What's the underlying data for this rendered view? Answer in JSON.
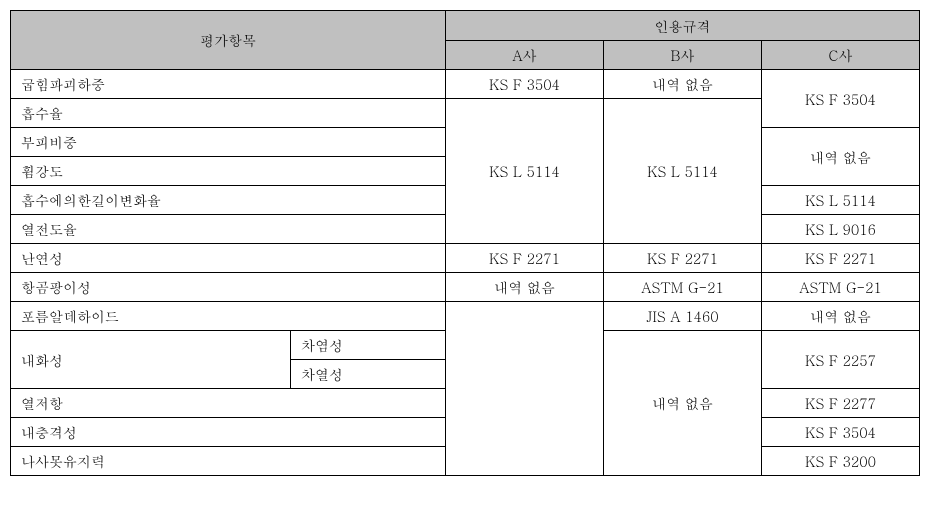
{
  "header": {
    "evaluation_item": "평가항목",
    "citation_standard": "인용규격",
    "company_a": "A사",
    "company_b": "B사",
    "company_c": "C사"
  },
  "rows": {
    "r1": {
      "label": "굽힘파괴하중",
      "a": "KS F 3504",
      "b": "내역 없음",
      "c": "KS F 3504"
    },
    "r2": {
      "label": "흡수율",
      "a": "KS L 5114",
      "b": "KS L 5114",
      "c": ""
    },
    "r3": {
      "label": "부피비중",
      "a": "",
      "b": "",
      "c": "내역 없음"
    },
    "r4": {
      "label": "휨강도",
      "a": "",
      "b": "",
      "c": ""
    },
    "r5": {
      "label": "흡수에의한길이변화율",
      "a": "",
      "b": "",
      "c": "KS L 5114"
    },
    "r6": {
      "label": "열전도율",
      "a": "",
      "b": "",
      "c": "KS L 9016"
    },
    "r7": {
      "label": "난연성",
      "a": "KS F 2271",
      "b": "KS F 2271",
      "c": "KS F 2271"
    },
    "r8": {
      "label": "항곰팡이성",
      "a": "내역 없음",
      "b": "ASTM G-21",
      "c": "ASTM G-21"
    },
    "r9": {
      "label": "포름알데하이드",
      "a": "",
      "b": "JIS A 1460",
      "c": "내역 없음"
    },
    "r10": {
      "label": "내화성",
      "sub1": "차염성",
      "sub2": "차열성",
      "a": "",
      "b": "내역 없음",
      "c": "KS F 2257"
    },
    "r11": {
      "label": "열저항",
      "a": "",
      "b": "",
      "c": "KS F 2277"
    },
    "r12": {
      "label": "내충격성",
      "a": "",
      "b": "",
      "c": "KS F 3504"
    },
    "r13": {
      "label": "나사못유지력",
      "a": "",
      "b": "",
      "c": "KS F 3200"
    }
  }
}
